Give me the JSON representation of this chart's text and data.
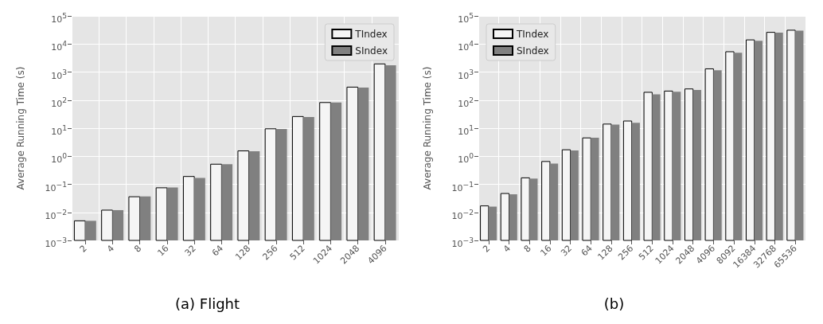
{
  "chart_data": [
    {
      "type": "bar",
      "ylabel": "Average Running Time (s)",
      "annotations": [
        "(a) Flight"
      ],
      "categories": [
        "2",
        "4",
        "8",
        "16",
        "32",
        "64",
        "128",
        "256",
        "512",
        "1024",
        "2048",
        "4096"
      ],
      "series": [
        {
          "name": "TIndex",
          "color": "#f5f5f5",
          "values": [
            0.005,
            0.012,
            0.036,
            0.075,
            0.19,
            0.52,
            1.55,
            9.5,
            26,
            82,
            290,
            1950
          ]
        },
        {
          "name": "SIndex",
          "color": "#808080",
          "values": [
            0.005,
            0.012,
            0.037,
            0.077,
            0.17,
            0.52,
            1.5,
            9.4,
            25,
            82,
            280,
            1750
          ]
        }
      ],
      "log": "y",
      "ylim": [
        0.001,
        100000
      ],
      "yticks": [
        {
          "value": 0.001,
          "label": "10$^{−3}$"
        },
        {
          "value": 0.01,
          "label": "10$^{−2}$"
        },
        {
          "value": 0.1,
          "label": "10$^{−1}$"
        },
        {
          "value": 1,
          "label": "10$^{0}$"
        },
        {
          "value": 10,
          "label": "10$^{1}$"
        },
        {
          "value": 100,
          "label": "10$^{2}$"
        },
        {
          "value": 1000,
          "label": "10$^{3}$"
        },
        {
          "value": 10000,
          "label": "10$^{4}$"
        },
        {
          "value": 100000,
          "label": "10$^{5}$"
        }
      ],
      "grid": true,
      "legend": "top right"
    },
    {
      "type": "bar",
      "ylabel": "Average Running Time (s)",
      "annotations": [
        "(b)"
      ],
      "categories": [
        "2",
        "4",
        "8",
        "16",
        "32",
        "64",
        "128",
        "256",
        "512",
        "1024",
        "2048",
        "4096",
        "8092",
        "16384",
        "32768",
        "65536"
      ],
      "series": [
        {
          "name": "TIndex",
          "color": "#f5f5f5",
          "values": [
            0.017,
            0.047,
            0.17,
            0.65,
            1.7,
            4.5,
            14,
            18,
            190,
            210,
            250,
            1300,
            5300,
            14000,
            26000,
            31000
          ]
        },
        {
          "name": "SIndex",
          "color": "#808080",
          "values": [
            0.016,
            0.044,
            0.16,
            0.55,
            1.6,
            4.6,
            13.5,
            15.5,
            160,
            200,
            230,
            1150,
            4900,
            13000,
            25500,
            30000
          ]
        }
      ],
      "log": "y",
      "ylim": [
        0.001,
        100000
      ],
      "yticks": [
        {
          "value": 0.001,
          "label": "10$^{−3}$"
        },
        {
          "value": 0.01,
          "label": "10$^{−2}$"
        },
        {
          "value": 0.1,
          "label": "10$^{−1}$"
        },
        {
          "value": 1,
          "label": "10$^{0}$"
        },
        {
          "value": 10,
          "label": "10$^{1}$"
        },
        {
          "value": 100,
          "label": "10$^{2}$"
        },
        {
          "value": 1000,
          "label": "10$^{3}$"
        },
        {
          "value": 10000,
          "label": "10$^{4}$"
        },
        {
          "value": 100000,
          "label": "10$^{5}$"
        }
      ],
      "grid": true,
      "legend": "top left"
    }
  ]
}
